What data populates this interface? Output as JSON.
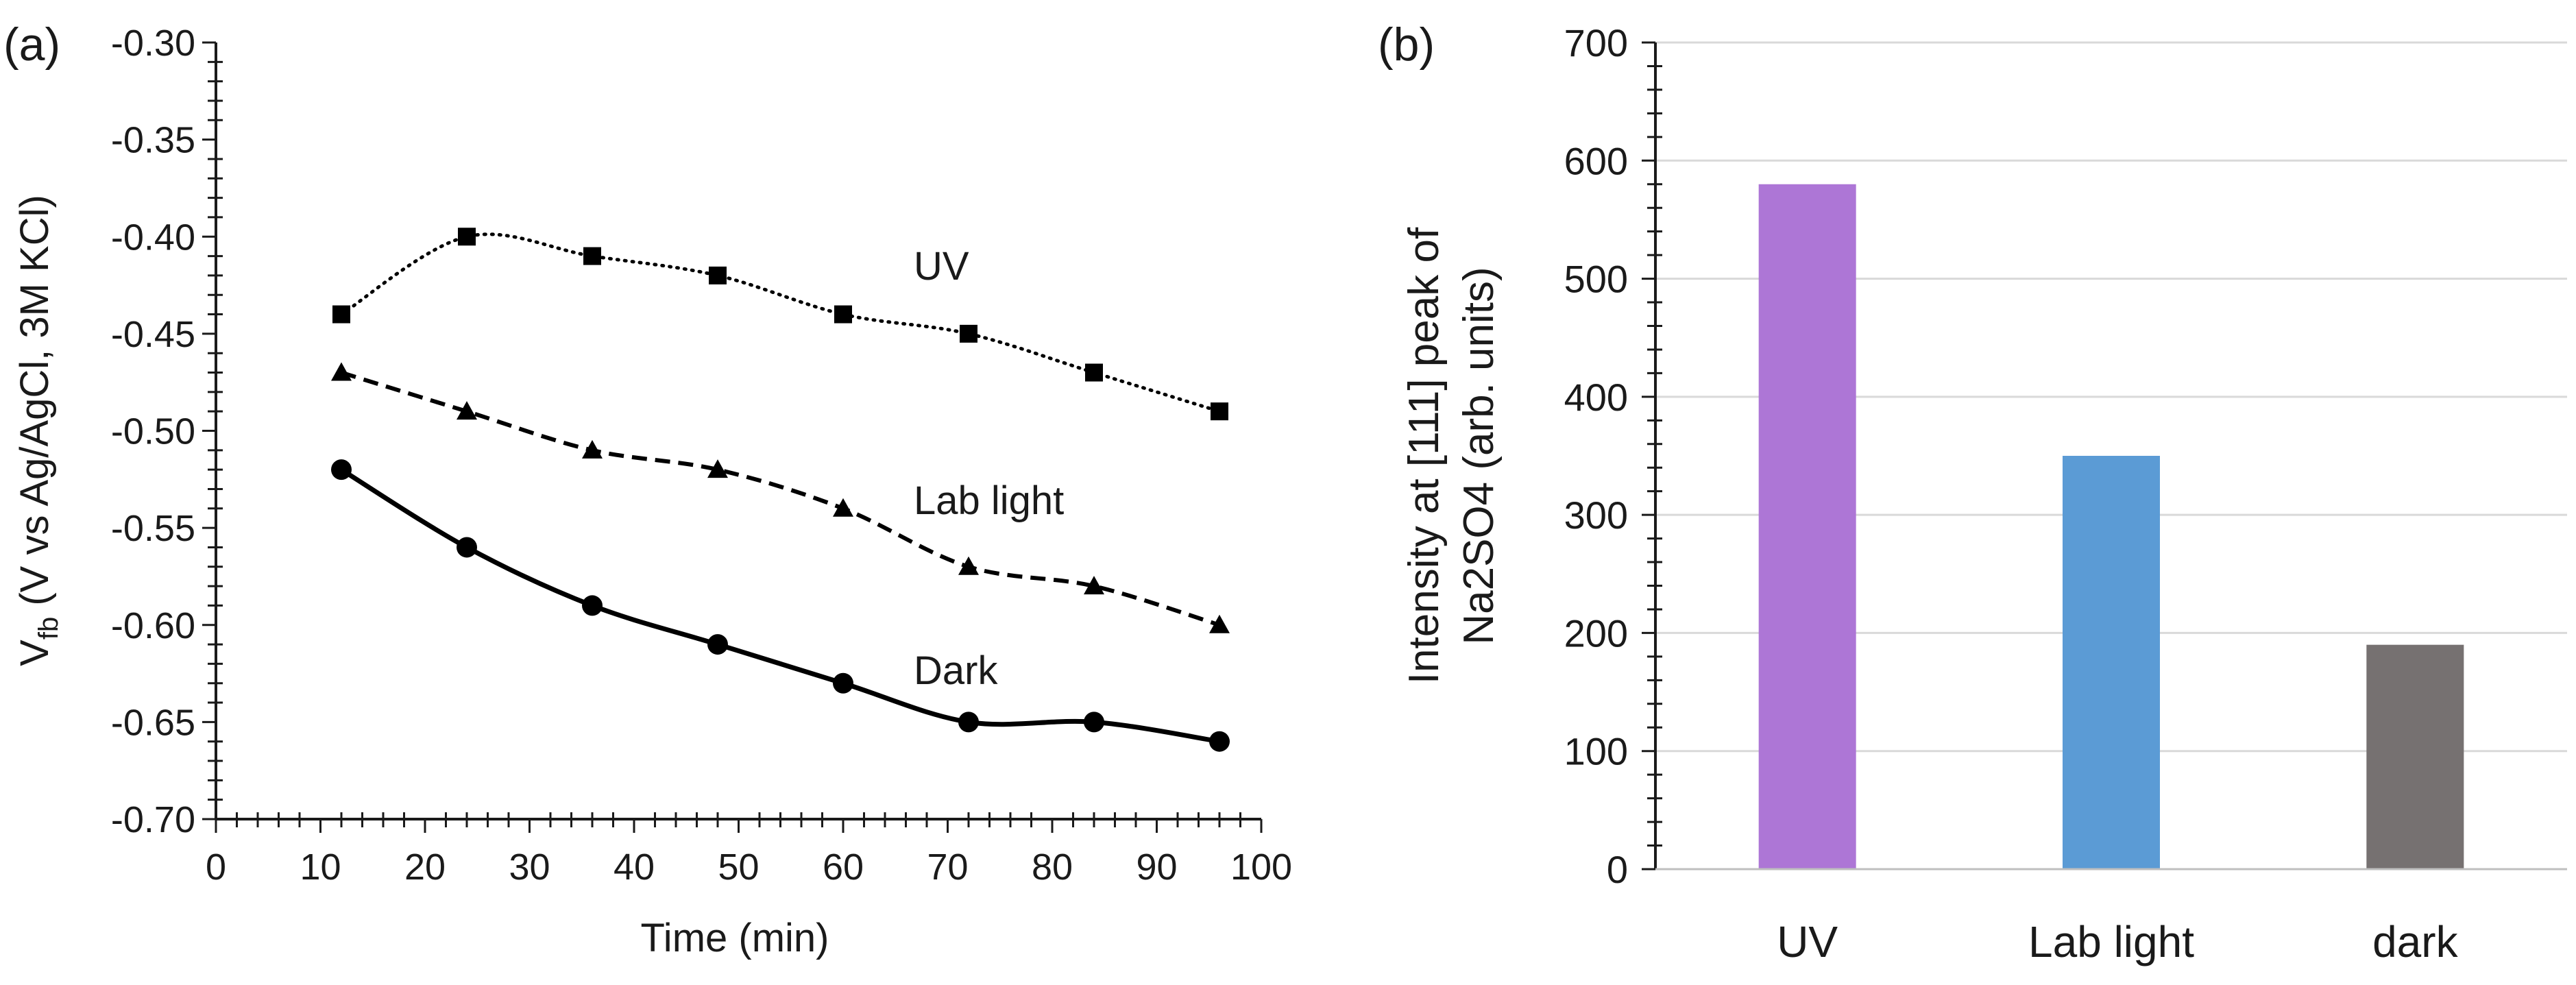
{
  "chart_data": [
    {
      "panel_label": "(a)",
      "type": "line",
      "xlabel": "Time (min)",
      "ylabel_main": "V",
      "ylabel_sub": "fb",
      "ylabel_rest": " (V vs Ag/AgCl, 3M KCl)",
      "xlim": [
        0,
        100
      ],
      "ylim": [
        -0.7,
        -0.3
      ],
      "x_ticks": [
        "0",
        "10",
        "20",
        "30",
        "40",
        "50",
        "60",
        "70",
        "80",
        "90",
        "100"
      ],
      "y_ticks": [
        "-0.70",
        "-0.65",
        "-0.60",
        "-0.55",
        "-0.50",
        "-0.45",
        "-0.40",
        "-0.35",
        "-0.30"
      ],
      "grid": false,
      "series": [
        {
          "name": "UV",
          "marker": "square",
          "line": "dotted",
          "x": [
            12,
            24,
            36,
            48,
            60,
            72,
            84,
            96
          ],
          "y": [
            -0.44,
            -0.4,
            -0.41,
            -0.42,
            -0.44,
            -0.45,
            -0.47,
            -0.49
          ]
        },
        {
          "name": "Lab light",
          "marker": "triangle",
          "line": "dashed",
          "x": [
            12,
            24,
            36,
            48,
            60,
            72,
            84,
            96
          ],
          "y": [
            -0.47,
            -0.49,
            -0.51,
            -0.52,
            -0.54,
            -0.57,
            -0.58,
            -0.6
          ]
        },
        {
          "name": "Dark",
          "marker": "circle",
          "line": "solid",
          "x": [
            12,
            24,
            36,
            48,
            60,
            72,
            84,
            96
          ],
          "y": [
            -0.52,
            -0.56,
            -0.59,
            -0.61,
            -0.63,
            -0.65,
            -0.65,
            -0.66
          ]
        }
      ]
    },
    {
      "panel_label": "(b)",
      "type": "bar",
      "categories": [
        "UV",
        "Lab light",
        "dark"
      ],
      "values": [
        580,
        350,
        190
      ],
      "colors": [
        "#ad76d6",
        "#5b9bd5",
        "#767171"
      ],
      "ylabel_line1": "Intensity at [111] peak of",
      "ylabel_line2": "Na2SO4 (arb. units)",
      "ylim": [
        0,
        700
      ],
      "y_ticks": [
        "0",
        "100",
        "200",
        "300",
        "400",
        "500",
        "600",
        "700"
      ],
      "grid": true
    }
  ]
}
